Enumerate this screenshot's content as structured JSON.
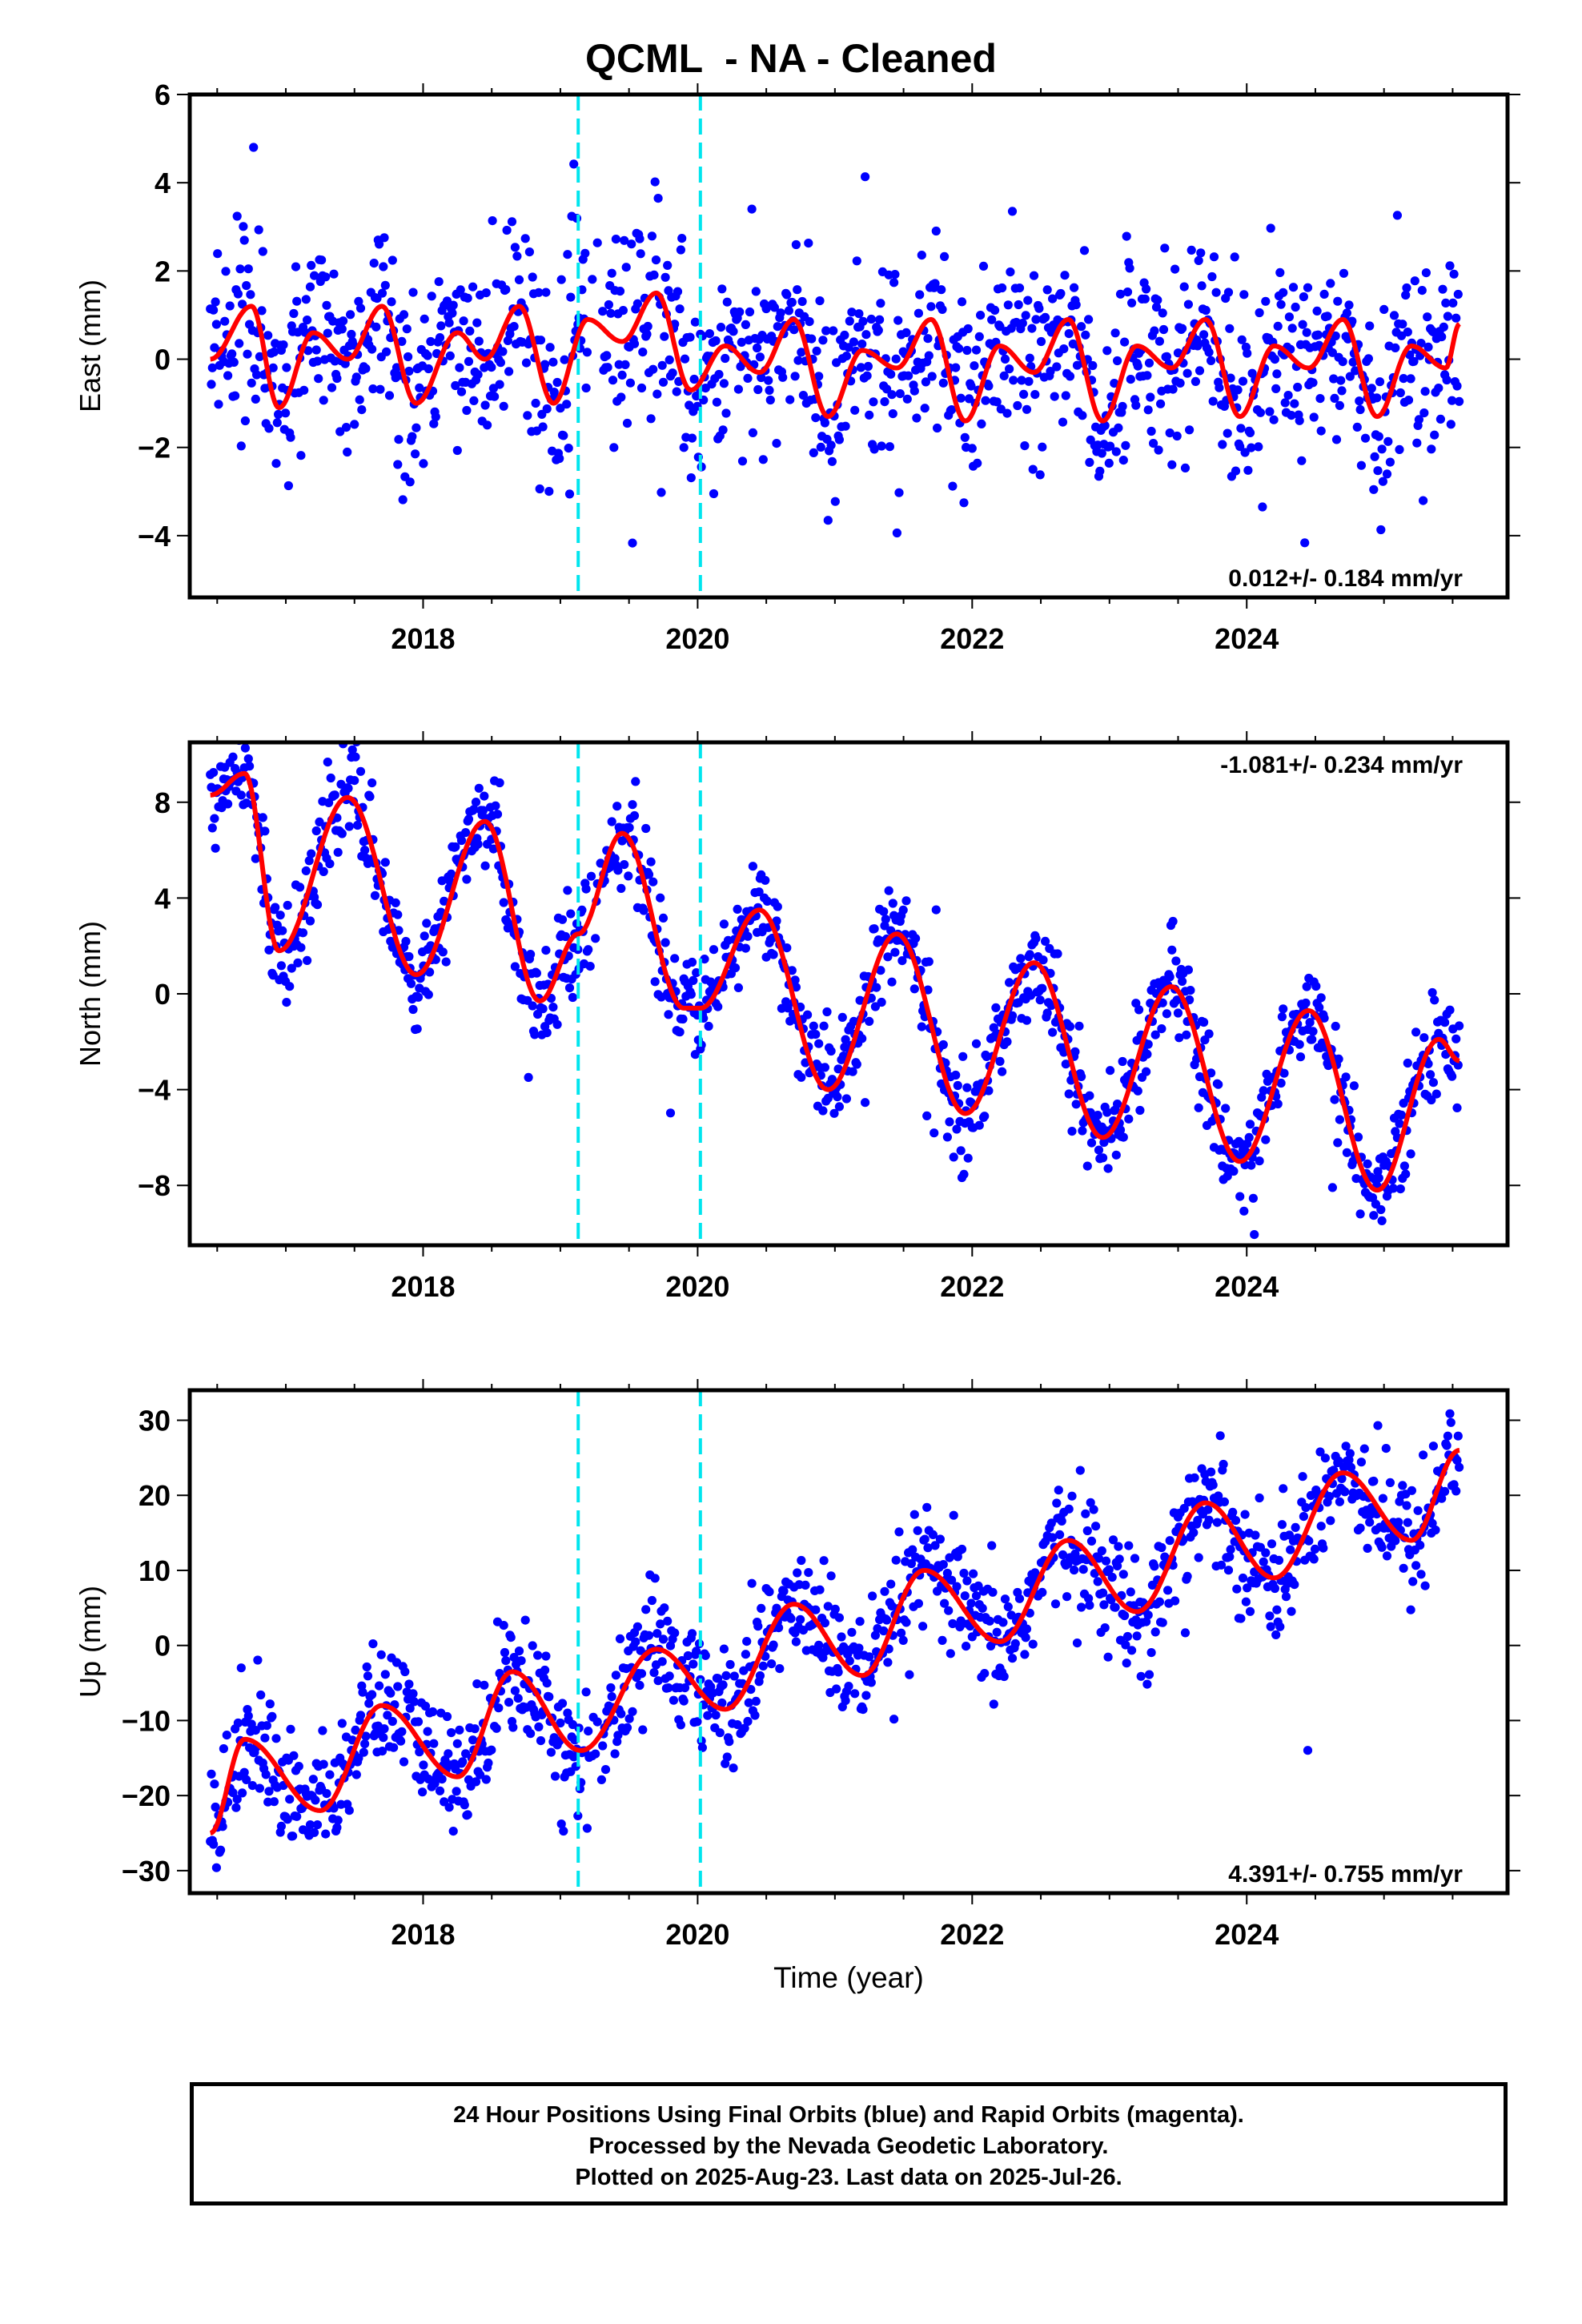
{
  "title": "QCML  - NA - Cleaned",
  "footer": {
    "lines": [
      "24 Hour Positions Using Final Orbits (blue) and Rapid Orbits (magenta).",
      "Processed by the Nevada Geodetic Laboratory.",
      "Plotted on 2025-Aug-23. Last data on 2025-Jul-26."
    ]
  },
  "colors": {
    "points": "#0000ff",
    "fit": "#ff0000",
    "event_lines": "#00e5ee",
    "frame": "#000000"
  },
  "chart_data": [
    {
      "type": "scatter",
      "component": "east",
      "ylabel": "East (mm)",
      "xlabel": "",
      "xlim": [
        2016.3,
        2025.9
      ],
      "ylim": [
        -5.4,
        6.0
      ],
      "yticks": [
        -4,
        -2,
        0,
        2,
        4,
        6
      ],
      "xticks": [
        2018,
        2020,
        2022,
        2024
      ],
      "event_lines_x": [
        2019.13,
        2020.02
      ],
      "rate_label": "0.012+/- 0.184 mm/yr",
      "rate_label_position": "bottom-right",
      "fit_mean": 0.0,
      "fit_trend_mm_per_yr": 0.012,
      "annual_amplitude_mm": 0.8,
      "semiannual_amplitude_mm": 0.5,
      "scatter_sd_mm": 1.1,
      "curve": {
        "x": [
          2016.45,
          2016.75,
          2016.95,
          2017.2,
          2017.45,
          2017.7,
          2017.95,
          2018.25,
          2018.45,
          2018.7,
          2018.95,
          2019.2,
          2019.45,
          2019.7,
          2019.95,
          2020.2,
          2020.45,
          2020.7,
          2020.95,
          2021.2,
          2021.45,
          2021.7,
          2021.95,
          2022.2,
          2022.45,
          2022.7,
          2022.95,
          2023.2,
          2023.45,
          2023.7,
          2023.95,
          2024.2,
          2024.45,
          2024.7,
          2024.95,
          2025.2,
          2025.45,
          2025.55
        ],
        "y": [
          0.0,
          1.2,
          -1.1,
          0.6,
          0.0,
          1.2,
          -1.0,
          0.6,
          0.0,
          1.2,
          -1.0,
          0.9,
          0.4,
          1.5,
          -0.7,
          0.3,
          -0.3,
          0.9,
          -1.3,
          0.2,
          -0.2,
          0.9,
          -1.4,
          0.3,
          -0.3,
          0.9,
          -1.4,
          0.3,
          -0.2,
          0.9,
          -1.3,
          0.3,
          -0.2,
          0.9,
          -1.3,
          0.3,
          -0.2,
          0.8
        ]
      }
    },
    {
      "type": "scatter",
      "component": "north",
      "ylabel": "North (mm)",
      "xlabel": "",
      "xlim": [
        2016.3,
        2025.9
      ],
      "ylim": [
        -10.5,
        10.5
      ],
      "yticks": [
        -8,
        -4,
        0,
        4,
        8
      ],
      "xticks": [
        2018,
        2020,
        2022,
        2024
      ],
      "event_lines_x": [
        2019.13,
        2020.02
      ],
      "rate_label": "-1.081+/- 0.234 mm/yr",
      "rate_label_position": "top-right",
      "fit_mean": 0.0,
      "fit_trend_mm_per_yr": -1.081,
      "annual_amplitude_mm": 4.2,
      "semiannual_amplitude_mm": 0.5,
      "scatter_sd_mm": 1.0,
      "curve": {
        "x": [
          2016.45,
          2016.7,
          2016.95,
          2017.45,
          2017.95,
          2018.45,
          2018.85,
          2019.13,
          2019.45,
          2019.9,
          2020.02,
          2020.45,
          2020.95,
          2021.45,
          2021.95,
          2022.45,
          2022.95,
          2023.45,
          2023.95,
          2024.45,
          2024.95,
          2025.4,
          2025.55
        ],
        "y": [
          8.3,
          9.2,
          1.8,
          8.2,
          0.8,
          7.2,
          -0.3,
          2.5,
          6.7,
          -0.6,
          -0.6,
          3.5,
          -4.0,
          2.5,
          -5.0,
          1.3,
          -6.0,
          0.3,
          -7.0,
          -0.7,
          -8.2,
          -1.9,
          -2.8
        ]
      }
    },
    {
      "type": "scatter",
      "component": "up",
      "ylabel": "Up (mm)",
      "xlabel": "Time (year)",
      "xlim": [
        2016.3,
        2025.9
      ],
      "ylim": [
        -33.0,
        34.0
      ],
      "yticks": [
        -30,
        -20,
        -10,
        0,
        10,
        20,
        30
      ],
      "xticks": [
        2018,
        2020,
        2022,
        2024
      ],
      "event_lines_x": [
        2019.13,
        2020.02
      ],
      "rate_label": "4.391+/- 0.755 mm/yr",
      "rate_label_position": "bottom-right",
      "fit_mean": 0.0,
      "fit_trend_mm_per_yr": 4.391,
      "annual_amplitude_mm": 5.0,
      "semiannual_amplitude_mm": 0.5,
      "scatter_sd_mm": 4.0,
      "curve": {
        "x": [
          2016.45,
          2016.7,
          2017.25,
          2017.7,
          2018.25,
          2018.65,
          2019.15,
          2019.7,
          2020.2,
          2020.7,
          2021.2,
          2021.65,
          2022.2,
          2022.7,
          2023.2,
          2023.7,
          2024.2,
          2024.7,
          2025.2,
          2025.55
        ],
        "y": [
          -25.0,
          -12.5,
          -22.0,
          -8.0,
          -17.5,
          -3.5,
          -14.0,
          -0.5,
          -8.5,
          5.5,
          -4.0,
          10.0,
          0.5,
          14.0,
          4.5,
          19.0,
          9.0,
          23.0,
          14.0,
          26.0
        ]
      }
    }
  ]
}
